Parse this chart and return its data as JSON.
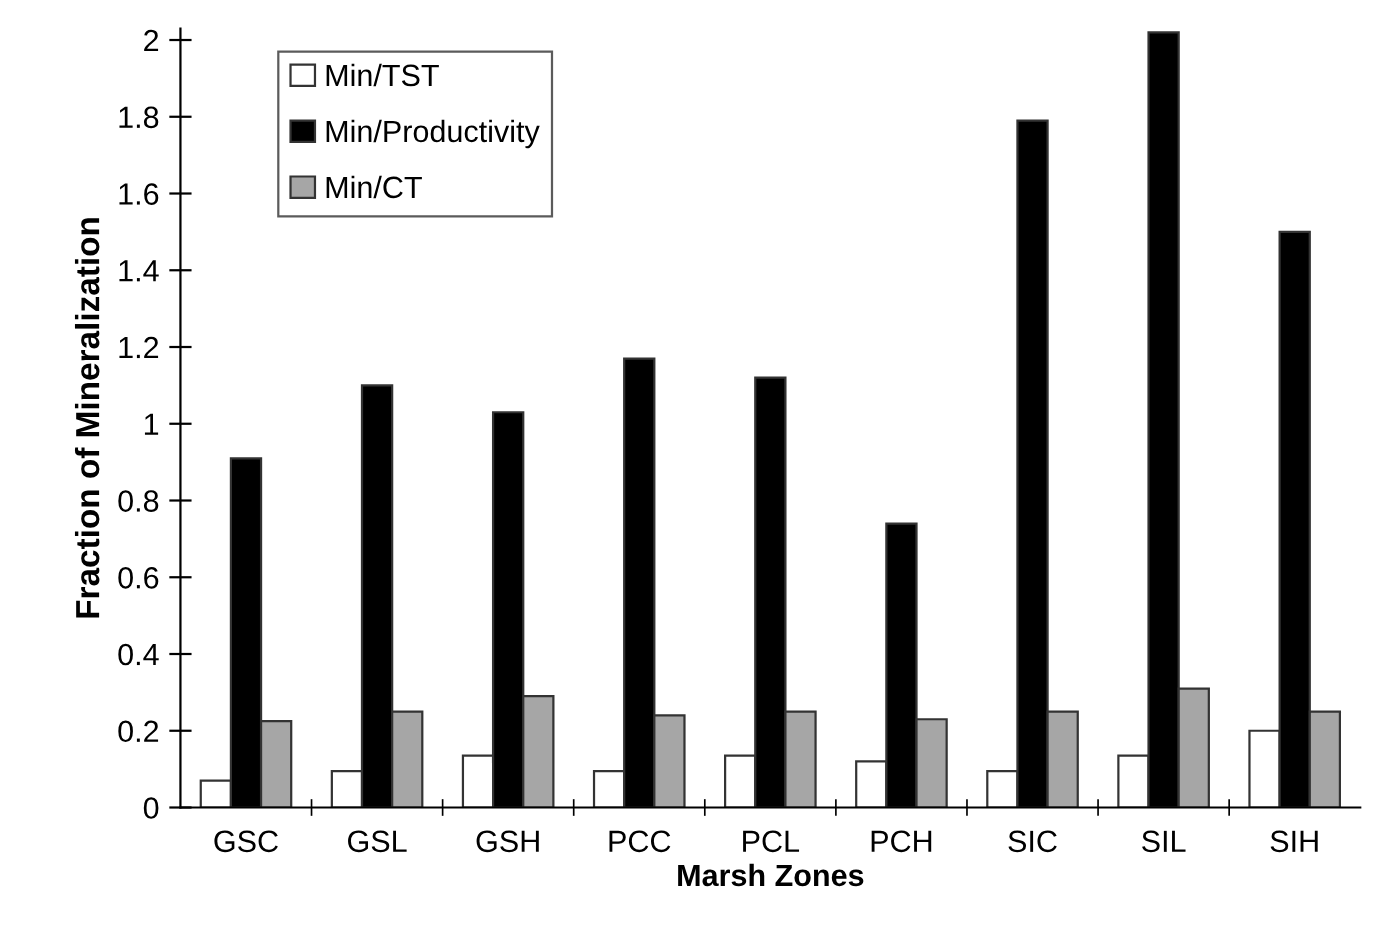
{
  "chart_data": {
    "type": "bar",
    "xlabel": "Marsh Zones",
    "ylabel": "Fraction of Mineralization",
    "categories": [
      "GSC",
      "GSL",
      "GSH",
      "PCC",
      "PCL",
      "PCH",
      "SIC",
      "SIL",
      "SIH"
    ],
    "series": [
      {
        "name": "Min/TST",
        "color": "#ffffff",
        "values": [
          0.07,
          0.095,
          0.135,
          0.095,
          0.135,
          0.12,
          0.095,
          0.135,
          0.2
        ]
      },
      {
        "name": "Min/Productivity",
        "color": "#000000",
        "values": [
          0.91,
          1.1,
          1.03,
          1.17,
          1.12,
          0.74,
          1.79,
          2.02,
          1.5
        ]
      },
      {
        "name": "Min/CT",
        "color": "#a6a6a6",
        "values": [
          0.225,
          0.25,
          0.29,
          0.24,
          0.25,
          0.23,
          0.25,
          0.31,
          0.25
        ]
      }
    ],
    "ylim": [
      0,
      2.03
    ],
    "yticks": [
      0,
      0.2,
      0.4,
      0.6,
      0.8,
      1,
      1.2,
      1.4,
      1.6,
      1.8,
      2
    ],
    "grid": false,
    "legend": "top left"
  }
}
